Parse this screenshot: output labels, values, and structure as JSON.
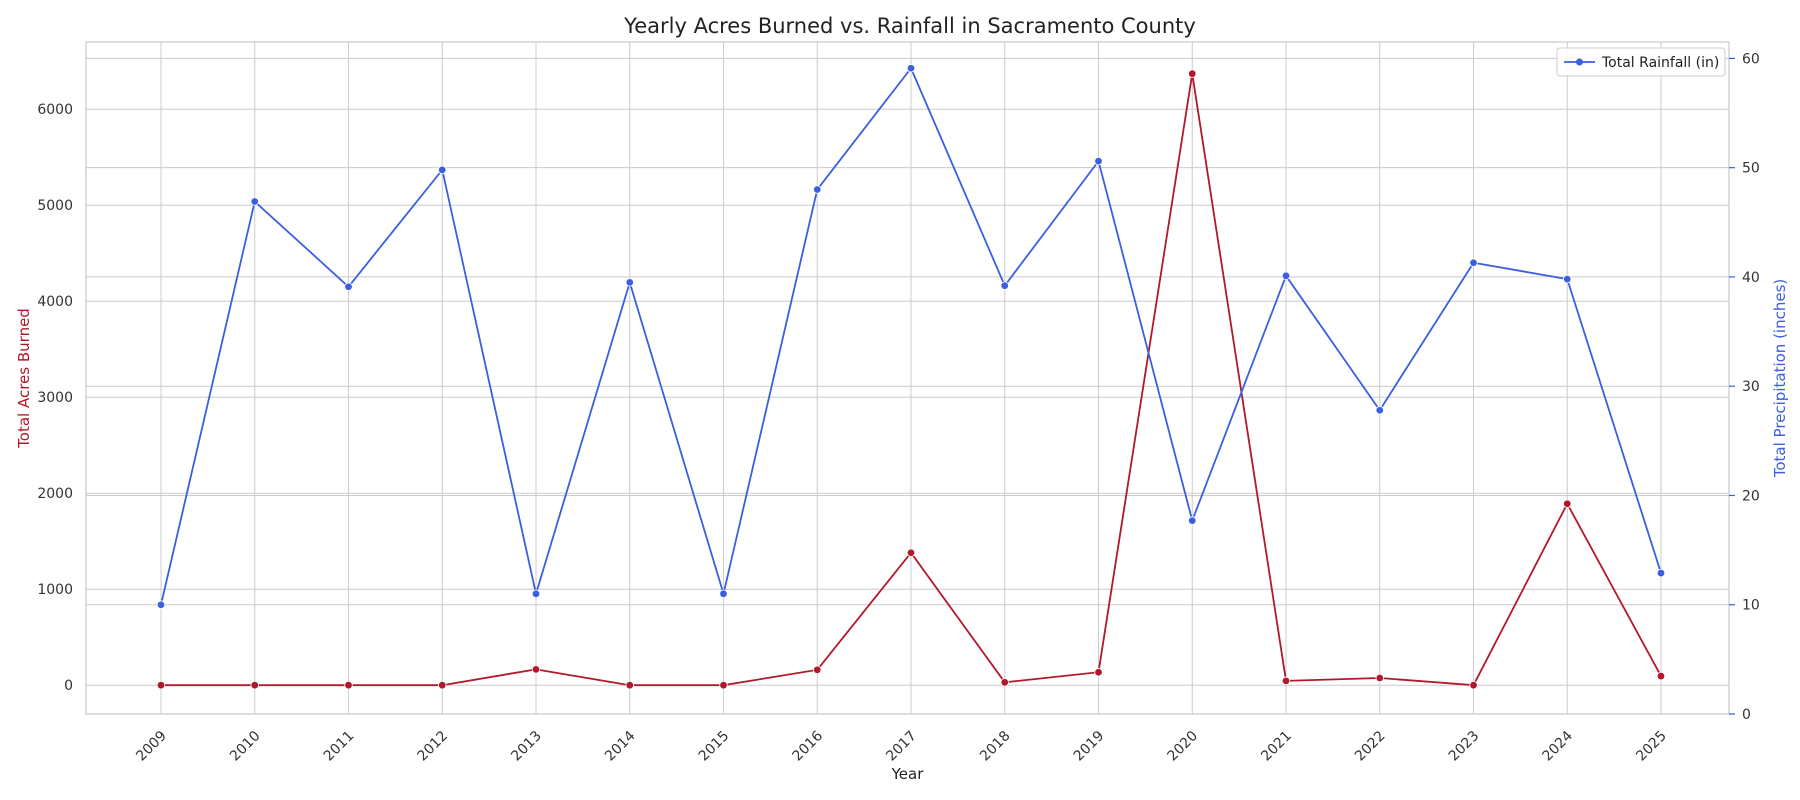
{
  "chart_data": {
    "type": "line",
    "title": "Yearly Acres Burned vs. Rainfall in Sacramento County",
    "xlabel": "Year",
    "ylabel_left": "Total Acres Burned",
    "ylabel_right": "Total Precipitation (inches)",
    "categories": [
      "2009",
      "2010",
      "2011",
      "2012",
      "2013",
      "2014",
      "2015",
      "2016",
      "2017",
      "2018",
      "2019",
      "2020",
      "2021",
      "2022",
      "2023",
      "2024",
      "2025"
    ],
    "y_left_lim": [
      -300,
      6700
    ],
    "y_left_ticks": [
      0,
      1000,
      2000,
      3000,
      4000,
      5000,
      6000
    ],
    "y_right_lim": [
      0,
      61.5
    ],
    "y_right_ticks": [
      0,
      10,
      20,
      30,
      40,
      50,
      60
    ],
    "grid": true,
    "legend_position": "top-right",
    "series": [
      {
        "axis": "left",
        "color": "#b2182b",
        "values": [
          0,
          0,
          0,
          0,
          165,
          0,
          0,
          160,
          1380,
          30,
          135,
          6370,
          45,
          75,
          0,
          1890,
          95
        ]
      },
      {
        "name": "Total Rainfall (in)",
        "axis": "right",
        "color": "#3a5fe0",
        "values": [
          10.0,
          46.9,
          39.1,
          49.8,
          11.0,
          39.5,
          11.0,
          48.0,
          59.1,
          39.2,
          50.6,
          17.7,
          40.1,
          27.8,
          41.3,
          39.8,
          12.9
        ]
      }
    ],
    "colors": {
      "left_axis": "#b2182b",
      "right_axis": "#3a5fe0",
      "grid": "#cccccc"
    }
  }
}
